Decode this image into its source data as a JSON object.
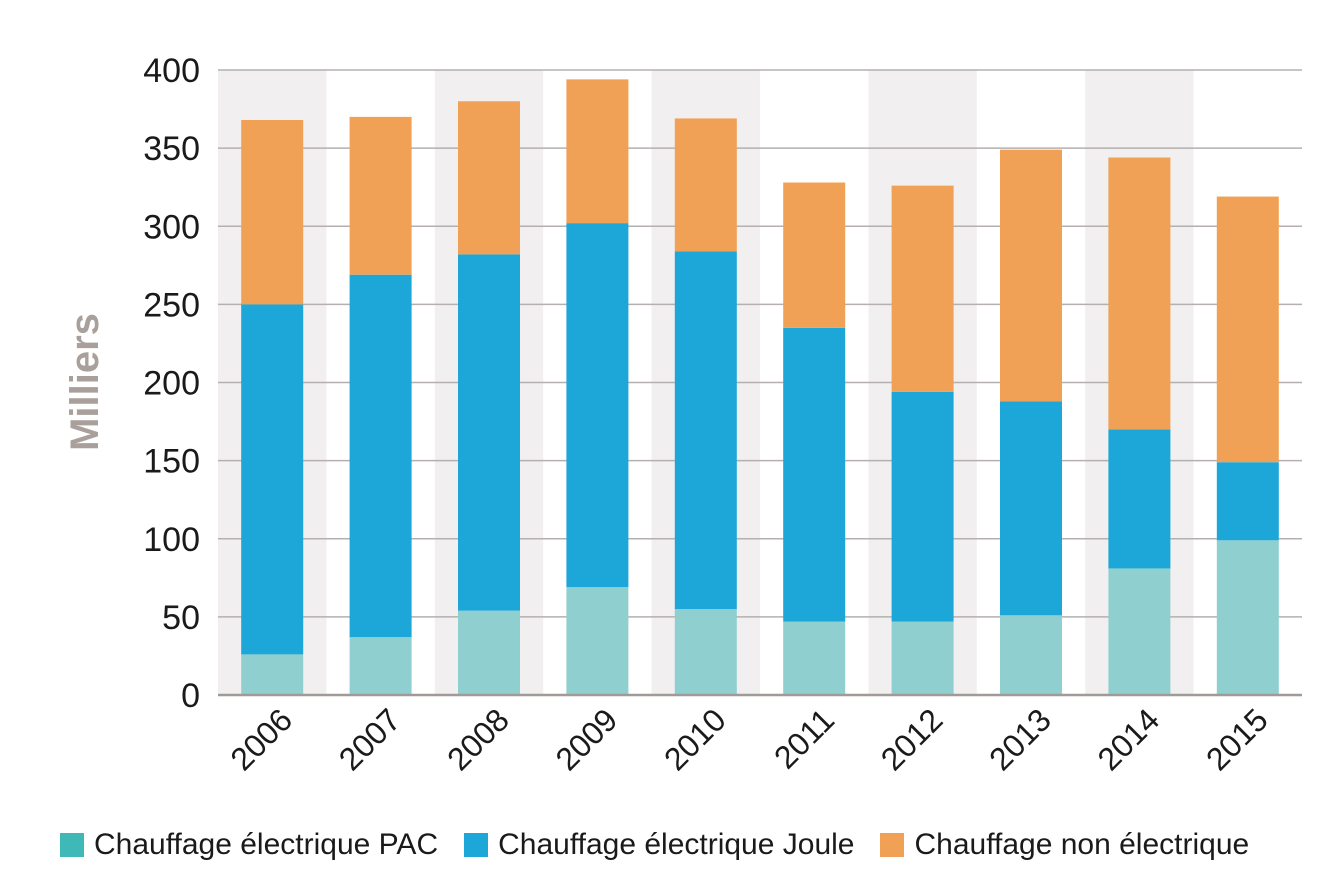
{
  "chart_data": {
    "type": "bar",
    "stacked": true,
    "ylabel": "Milliers",
    "xlabel": "",
    "ylim": [
      0,
      400
    ],
    "yticks": [
      0,
      50,
      100,
      150,
      200,
      250,
      300,
      350,
      400
    ],
    "grid": true,
    "legend_position": "bottom",
    "categories": [
      "2006",
      "2007",
      "2008",
      "2009",
      "2010",
      "2011",
      "2012",
      "2013",
      "2014",
      "2015"
    ],
    "series": [
      {
        "name": "Chauffage électrique PAC",
        "color": "#8fcfcf",
        "values": [
          26,
          37,
          54,
          69,
          55,
          47,
          47,
          51,
          81,
          99
        ]
      },
      {
        "name": "Chauffage électrique Joule",
        "color": "#1ca7d8",
        "values": [
          224,
          232,
          228,
          233,
          229,
          188,
          147,
          137,
          89,
          50
        ]
      },
      {
        "name": "Chauffage non électrique",
        "color": "#f0a155",
        "values": [
          118,
          101,
          98,
          92,
          85,
          93,
          132,
          161,
          174,
          170
        ]
      }
    ],
    "legend_swatch_colors": [
      "#3fb8b8",
      "#1ca7d8",
      "#f0a155"
    ],
    "band_color": "#f2eff0",
    "grid_color": "#b5b0ae",
    "axis_color": "#a09a98"
  }
}
